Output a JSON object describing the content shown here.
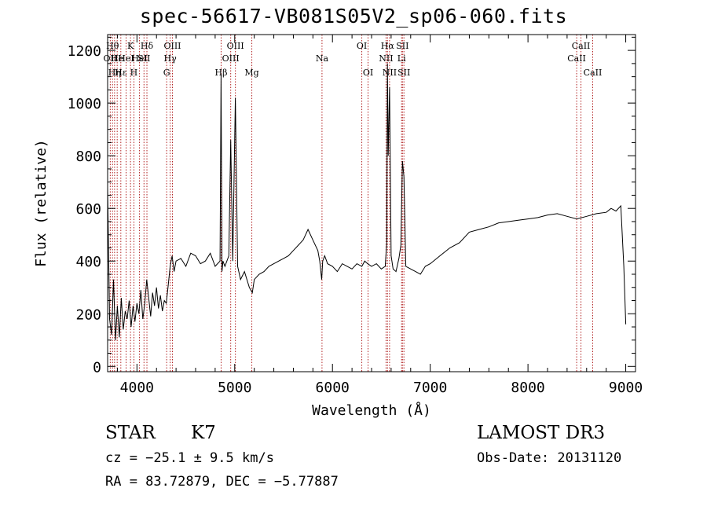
{
  "chart_data": {
    "type": "line",
    "title": "spec-56617-VB081S05V2_sp06-060.fits",
    "xlabel": "Wavelength (Å)",
    "ylabel": "Flux (relative)",
    "xlim": [
      3700,
      9100
    ],
    "ylim": [
      -20,
      1260
    ],
    "xticks": [
      4000,
      5000,
      6000,
      7000,
      8000,
      9000
    ],
    "yticks": [
      0,
      200,
      400,
      600,
      800,
      1000,
      1200
    ],
    "grid": false,
    "line_color": "#000000",
    "marker_color": "#b22222",
    "series": [
      {
        "x": [
          3700,
          3720,
          3740,
          3760,
          3780,
          3800,
          3820,
          3840,
          3860,
          3880,
          3900,
          3920,
          3940,
          3960,
          3980,
          4000,
          4020,
          4040,
          4060,
          4080,
          4100,
          4120,
          4140,
          4160,
          4180,
          4200,
          4220,
          4240,
          4260,
          4280,
          4300,
          4320,
          4340,
          4360,
          4380,
          4400,
          4450,
          4500,
          4550,
          4600,
          4650,
          4700,
          4750,
          4800,
          4850,
          4860,
          4870,
          4880,
          4900,
          4940,
          4959,
          4980,
          5007,
          5030,
          5060,
          5100,
          5150,
          5180,
          5200,
          5250,
          5300,
          5350,
          5400,
          5450,
          5500,
          5550,
          5600,
          5650,
          5700,
          5750,
          5800,
          5850,
          5870,
          5890,
          5900,
          5920,
          5950,
          6000,
          6050,
          6100,
          6150,
          6200,
          6250,
          6300,
          6330,
          6360,
          6400,
          6450,
          6500,
          6540,
          6555,
          6562,
          6570,
          6584,
          6600,
          6620,
          6650,
          6680,
          6700,
          6716,
          6731,
          6750,
          6800,
          6850,
          6900,
          6950,
          7000,
          7100,
          7200,
          7300,
          7400,
          7500,
          7600,
          7700,
          7800,
          7900,
          8000,
          8100,
          8200,
          8300,
          8400,
          8500,
          8600,
          8700,
          8800,
          8850,
          8900,
          8950,
          8980,
          9000
        ],
        "y": [
          680,
          180,
          120,
          330,
          100,
          230,
          110,
          260,
          140,
          210,
          180,
          250,
          150,
          230,
          170,
          240,
          200,
          290,
          180,
          240,
          330,
          260,
          190,
          280,
          230,
          300,
          220,
          270,
          210,
          250,
          240,
          310,
          380,
          420,
          360,
          400,
          410,
          380,
          430,
          420,
          390,
          400,
          430,
          380,
          400,
          1110,
          360,
          400,
          380,
          420,
          860,
          400,
          1020,
          380,
          330,
          360,
          300,
          280,
          330,
          350,
          360,
          380,
          390,
          400,
          410,
          420,
          440,
          460,
          480,
          520,
          480,
          440,
          400,
          330,
          400,
          420,
          390,
          380,
          360,
          390,
          380,
          370,
          390,
          380,
          400,
          390,
          380,
          390,
          370,
          380,
          470,
          1150,
          800,
          1060,
          420,
          370,
          360,
          410,
          460,
          780,
          720,
          380,
          370,
          360,
          350,
          380,
          390,
          420,
          450,
          470,
          510,
          520,
          530,
          545,
          550,
          555,
          560,
          565,
          575,
          580,
          570,
          560,
          570,
          580,
          585,
          600,
          590,
          610,
          380,
          160
        ]
      }
    ],
    "line_markers": [
      {
        "x": 3727,
        "label": "OII",
        "row": 2
      },
      {
        "x": 3750,
        "label": "Hθ",
        "row": 1
      },
      {
        "x": 3771,
        "label": "Hη",
        "row": 3
      },
      {
        "x": 3798,
        "label": "He",
        "row": 2
      },
      {
        "x": 3835,
        "label": "Hε",
        "row": 3
      },
      {
        "x": 3889,
        "label": "HeI",
        "row": 2
      },
      {
        "x": 3934,
        "label": "K",
        "row": 1
      },
      {
        "x": 3969,
        "label": "H",
        "row": 3
      },
      {
        "x": 4026,
        "label": "HeI",
        "row": 2
      },
      {
        "x": 4072,
        "label": "SII",
        "row": 2
      },
      {
        "x": 4102,
        "label": "Hδ",
        "row": 1
      },
      {
        "x": 4304,
        "label": "G",
        "row": 3
      },
      {
        "x": 4340,
        "label": "Hγ",
        "row": 2
      },
      {
        "x": 4363,
        "label": "OIII",
        "row": 1
      },
      {
        "x": 4861,
        "label": "Hβ",
        "row": 3
      },
      {
        "x": 4959,
        "label": "OIII",
        "row": 2
      },
      {
        "x": 5007,
        "label": "OIII",
        "row": 1
      },
      {
        "x": 5175,
        "label": "Mg",
        "row": 3
      },
      {
        "x": 5893,
        "label": "Na",
        "row": 2
      },
      {
        "x": 6300,
        "label": "OI",
        "row": 1
      },
      {
        "x": 6364,
        "label": "OI",
        "row": 3
      },
      {
        "x": 6548,
        "label": "NII",
        "row": 2
      },
      {
        "x": 6563,
        "label": "Hα",
        "row": 1
      },
      {
        "x": 6584,
        "label": "NII",
        "row": 3
      },
      {
        "x": 6707,
        "label": "Li",
        "row": 2
      },
      {
        "x": 6716,
        "label": "SII",
        "row": 1
      },
      {
        "x": 6731,
        "label": "SII",
        "row": 3
      },
      {
        "x": 8498,
        "label": "CaII",
        "row": 2
      },
      {
        "x": 8542,
        "label": "CaII",
        "row": 1
      },
      {
        "x": 8662,
        "label": "CaII",
        "row": 3
      }
    ]
  },
  "info": {
    "object_class": "STAR",
    "subclass": "K7",
    "survey": "LAMOST DR3",
    "cz": "cz = −25.1 ± 9.5 km/s",
    "obs_date": "Obs-Date: 20131120",
    "ra_dec": "RA =  83.72879, DEC =  −5.77887"
  }
}
